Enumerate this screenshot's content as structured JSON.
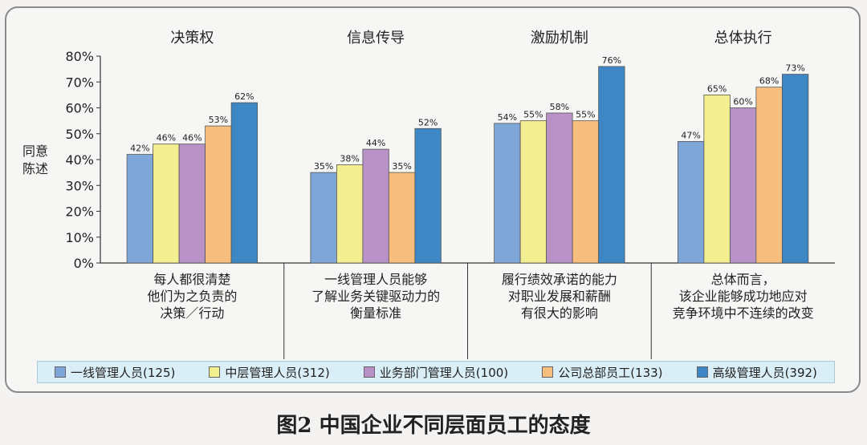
{
  "chart_data": {
    "type": "bar",
    "ylabel_lines": [
      "同意",
      "陈述"
    ],
    "ylim": [
      0,
      80
    ],
    "yticks": [
      "0%",
      "10%",
      "20%",
      "30%",
      "40%",
      "50%",
      "60%",
      "70%",
      "80%"
    ],
    "grid": false,
    "legend_position": "bottom",
    "groups": [
      {
        "title": "决策权",
        "desc": [
          "每人都很清楚",
          "他们为之负责的",
          "决策／行动"
        ],
        "values": [
          42,
          46,
          46,
          53,
          62
        ]
      },
      {
        "title": "信息传导",
        "desc": [
          "一线管理人员能够",
          "了解业务关键驱动力的",
          "衡量标准"
        ],
        "values": [
          35,
          38,
          44,
          35,
          52
        ]
      },
      {
        "title": "激励机制",
        "desc": [
          "履行绩效承诺的能力",
          "对职业发展和薪酬",
          "有很大的影响"
        ],
        "values": [
          54,
          55,
          58,
          55,
          76
        ]
      },
      {
        "title": "总体执行",
        "desc": [
          "总体而言，",
          "该企业能够成功地应对",
          "竞争环境中不连续的改变"
        ],
        "values": [
          47,
          65,
          60,
          68,
          73
        ]
      }
    ],
    "series": [
      {
        "name": "一线管理人员(125)",
        "color": "#7ea6d8"
      },
      {
        "name": "中层管理人员(312)",
        "color": "#f3ee90"
      },
      {
        "name": "业务部门管理人员(100)",
        "color": "#b892c6"
      },
      {
        "name": "公司总部员工(133)",
        "color": "#f8be7e"
      },
      {
        "name": "高级管理人员(392)",
        "color": "#3d87c5"
      }
    ],
    "value_suffix": "%"
  },
  "caption": "图2  中国企业不同层面员工的态度"
}
